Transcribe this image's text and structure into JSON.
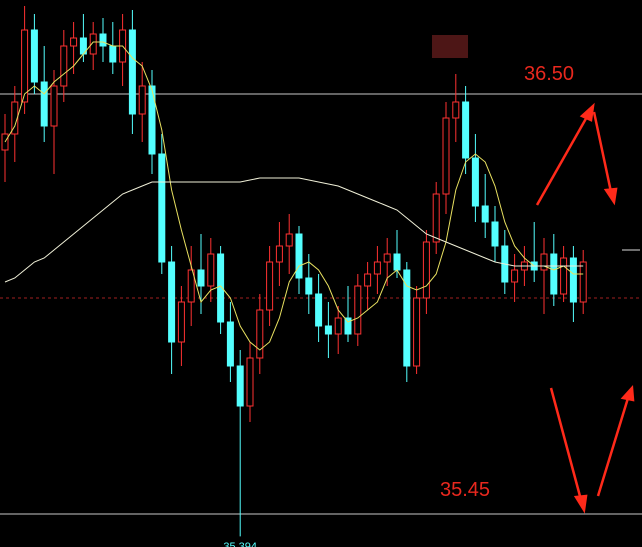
{
  "chart_data": {
    "type": "candlestick",
    "ylim": [
      35.3675,
      36.735
    ],
    "up_color": "#ff3232",
    "down_color": "#54ffff",
    "open": [
      36.36,
      36.4,
      36.48,
      36.66,
      36.53,
      36.42,
      36.52,
      36.62,
      36.64,
      36.6,
      36.65,
      36.62,
      36.58,
      36.66,
      36.45,
      36.52,
      36.35,
      36.08,
      35.88,
      35.98,
      36.06,
      36.02,
      36.1,
      35.93,
      35.82,
      35.72,
      35.84,
      35.96,
      36.08,
      36.12,
      36.15,
      36.04,
      36.0,
      35.92,
      35.9,
      35.94,
      35.9,
      36.02,
      36.05,
      36.08,
      36.1,
      36.06,
      35.82,
      35.99,
      36.13,
      36.25,
      36.44,
      36.48,
      36.34,
      36.22,
      36.18,
      36.12,
      36.03,
      36.06,
      36.08,
      36.06,
      36.1,
      36.0,
      36.09,
      35.98
    ],
    "high": [
      36.45,
      36.52,
      36.72,
      36.7,
      36.62,
      36.56,
      36.66,
      36.68,
      36.7,
      36.68,
      36.69,
      36.68,
      36.7,
      36.71,
      36.58,
      36.56,
      36.4,
      36.12,
      36.02,
      36.12,
      36.15,
      36.14,
      36.12,
      35.98,
      35.86,
      35.88,
      36.0,
      36.12,
      36.18,
      36.2,
      36.17,
      36.1,
      36.05,
      35.98,
      35.97,
      36.02,
      36.05,
      36.08,
      36.12,
      36.14,
      36.16,
      36.08,
      36.02,
      36.16,
      36.28,
      36.48,
      36.55,
      36.52,
      36.4,
      36.3,
      36.22,
      36.16,
      36.1,
      36.12,
      36.18,
      36.14,
      36.15,
      36.12,
      36.12,
      36.11
    ],
    "low": [
      36.28,
      36.33,
      36.45,
      36.5,
      36.38,
      36.3,
      36.48,
      36.55,
      36.58,
      36.56,
      36.58,
      36.55,
      36.52,
      36.4,
      36.38,
      36.3,
      36.05,
      35.8,
      35.82,
      35.92,
      35.95,
      35.98,
      35.9,
      35.78,
      35.394,
      35.68,
      35.8,
      35.92,
      36.02,
      36.05,
      36.0,
      35.95,
      35.88,
      35.84,
      35.85,
      35.88,
      35.87,
      35.96,
      36.0,
      36.02,
      36.04,
      35.78,
      35.8,
      35.95,
      36.1,
      36.2,
      36.38,
      36.3,
      36.18,
      36.14,
      36.08,
      36.0,
      35.98,
      36.02,
      36.03,
      35.95,
      35.97,
      35.98,
      35.93,
      35.95
    ],
    "close": [
      36.4,
      36.48,
      36.66,
      36.53,
      36.42,
      36.52,
      36.62,
      36.64,
      36.6,
      36.65,
      36.62,
      36.58,
      36.66,
      36.45,
      36.52,
      36.35,
      36.08,
      35.88,
      35.98,
      36.06,
      36.02,
      36.1,
      35.93,
      35.82,
      35.72,
      35.84,
      35.96,
      36.08,
      36.12,
      36.15,
      36.04,
      36.0,
      35.92,
      35.9,
      35.94,
      35.9,
      36.02,
      36.05,
      36.08,
      36.1,
      36.06,
      35.82,
      35.99,
      36.13,
      36.25,
      36.44,
      36.48,
      36.34,
      36.22,
      36.18,
      36.12,
      36.03,
      36.06,
      36.08,
      36.06,
      36.1,
      36.0,
      36.09,
      35.98,
      36.08
    ],
    "series": [
      {
        "color": "#e8e060",
        "values": [
          36.38,
          36.42,
          36.5,
          36.52,
          36.5,
          36.53,
          36.55,
          36.57,
          36.6,
          36.63,
          36.63,
          36.62,
          36.62,
          36.59,
          36.57,
          36.51,
          36.41,
          36.26,
          36.16,
          36.07,
          35.98,
          36.01,
          36.02,
          35.99,
          35.92,
          35.88,
          35.86,
          35.88,
          35.94,
          36.03,
          36.07,
          36.08,
          36.06,
          36.02,
          35.96,
          35.93,
          35.94,
          35.96,
          35.98,
          36.04,
          36.06,
          36.02,
          36.01,
          36.02,
          36.05,
          36.13,
          36.26,
          36.33,
          36.35,
          36.33,
          36.27,
          36.18,
          36.12,
          36.09,
          36.07,
          36.07,
          36.06,
          36.07,
          36.05,
          36.05
        ]
      },
      {
        "color": "#f0f0d8",
        "values": [
          36.03,
          36.04,
          36.06,
          36.08,
          36.09,
          36.11,
          36.13,
          36.15,
          36.17,
          36.19,
          36.21,
          36.23,
          36.25,
          36.26,
          36.27,
          36.28,
          36.28,
          36.28,
          36.28,
          36.28,
          36.28,
          36.28,
          36.28,
          36.28,
          36.28,
          36.285,
          36.29,
          36.29,
          36.29,
          36.29,
          36.29,
          36.285,
          36.28,
          36.275,
          36.27,
          36.26,
          36.25,
          36.24,
          36.23,
          36.22,
          36.21,
          36.19,
          36.17,
          36.15,
          36.14,
          36.13,
          36.12,
          36.11,
          36.1,
          36.09,
          36.08,
          36.075,
          36.07,
          36.07,
          36.07,
          36.07,
          36.07,
          36.07,
          36.07,
          36.07
        ]
      }
    ],
    "hlines": [
      {
        "value": 36.5,
        "label": "36.50"
      },
      {
        "value": 35.45,
        "label": "35.45"
      }
    ],
    "dashed_line": 35.99,
    "price_marker": 36.11,
    "low_label": {
      "value": 35.394,
      "label": "35.394"
    }
  }
}
